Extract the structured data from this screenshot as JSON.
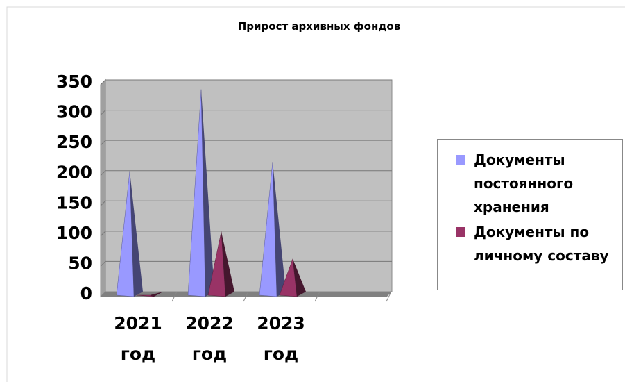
{
  "chart_data": {
    "type": "bar",
    "title": "Прирост архивных фондов",
    "categories": [
      "2021 год",
      "2022 год",
      "2023 год",
      null
    ],
    "series": [
      {
        "name": "Документы постоянного хранения",
        "color": "#9999ff",
        "values": [
          205,
          340,
          220,
          null
        ]
      },
      {
        "name": "Документы по личному составу",
        "color": "#993366",
        "values": [
          0,
          105,
          60,
          null
        ]
      }
    ],
    "ylim": [
      0,
      350
    ],
    "yticks": [
      0,
      50,
      100,
      150,
      200,
      250,
      300,
      350
    ],
    "grid": true,
    "legend": "right"
  }
}
